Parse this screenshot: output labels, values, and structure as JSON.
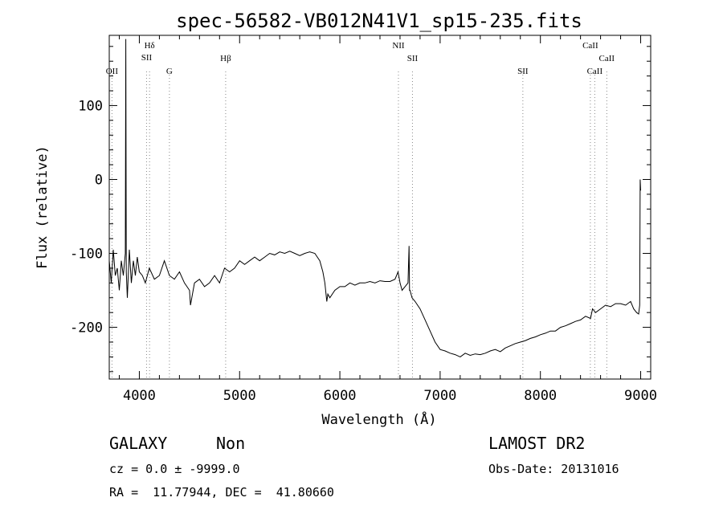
{
  "chart_data": {
    "type": "line",
    "title": "spec-56582-VB012N41V1_sp15-235.fits",
    "xlabel": "Wavelength (Å)",
    "ylabel": "Flux (relative)",
    "xlim": [
      3700,
      9100
    ],
    "ylim": [
      -270,
      195
    ],
    "x_ticks": [
      4000,
      5000,
      6000,
      7000,
      8000,
      9000
    ],
    "y_ticks": [
      -200,
      -100,
      0,
      100
    ],
    "grid": false,
    "series": [
      {
        "x": [
          3700,
          3720,
          3740,
          3760,
          3780,
          3800,
          3820,
          3840,
          3860,
          3865,
          3870,
          3880,
          3900,
          3920,
          3940,
          3960,
          3980,
          4000,
          4030,
          4060,
          4100,
          4150,
          4200,
          4250,
          4300,
          4350,
          4400,
          4450,
          4500,
          4510,
          4550,
          4600,
          4650,
          4700,
          4750,
          4800,
          4850,
          4900,
          4950,
          5000,
          5050,
          5100,
          5150,
          5200,
          5250,
          5300,
          5350,
          5400,
          5450,
          5500,
          5550,
          5600,
          5650,
          5700,
          5750,
          5800,
          5830,
          5850,
          5870,
          5880,
          5900,
          5950,
          6000,
          6050,
          6100,
          6150,
          6200,
          6250,
          6300,
          6350,
          6400,
          6450,
          6500,
          6550,
          6580,
          6600,
          6620,
          6650,
          6680,
          6690,
          6695,
          6700,
          6720,
          6750,
          6800,
          6850,
          6900,
          6950,
          7000,
          7050,
          7100,
          7150,
          7200,
          7250,
          7300,
          7350,
          7400,
          7450,
          7500,
          7550,
          7600,
          7650,
          7700,
          7750,
          7800,
          7850,
          7900,
          7950,
          8000,
          8050,
          8100,
          8150,
          8200,
          8250,
          8300,
          8350,
          8400,
          8450,
          8500,
          8520,
          8550,
          8600,
          8650,
          8700,
          8750,
          8800,
          8850,
          8900,
          8930,
          8960,
          8980,
          8990,
          8995,
          9000
        ],
        "y": [
          -110,
          -140,
          -95,
          -130,
          -120,
          -150,
          -110,
          -130,
          -100,
          190,
          -125,
          -160,
          -95,
          -140,
          -110,
          -130,
          -105,
          -125,
          -130,
          -140,
          -120,
          -135,
          -130,
          -110,
          -130,
          -135,
          -125,
          -140,
          -150,
          -170,
          -140,
          -135,
          -145,
          -140,
          -130,
          -140,
          -120,
          -125,
          -120,
          -110,
          -115,
          -110,
          -105,
          -110,
          -105,
          -100,
          -102,
          -98,
          -100,
          -97,
          -100,
          -103,
          -100,
          -98,
          -100,
          -110,
          -125,
          -140,
          -165,
          -155,
          -160,
          -150,
          -145,
          -145,
          -140,
          -143,
          -140,
          -140,
          -138,
          -140,
          -137,
          -138,
          -138,
          -135,
          -125,
          -140,
          -150,
          -145,
          -140,
          -90,
          -150,
          -150,
          -160,
          -165,
          -175,
          -190,
          -205,
          -220,
          -230,
          -232,
          -235,
          -237,
          -240,
          -235,
          -238,
          -236,
          -237,
          -235,
          -232,
          -230,
          -233,
          -228,
          -225,
          -222,
          -220,
          -218,
          -215,
          -213,
          -210,
          -208,
          -205,
          -205,
          -200,
          -198,
          -195,
          -192,
          -190,
          -185,
          -188,
          -175,
          -180,
          -175,
          -170,
          -172,
          -168,
          -168,
          -170,
          -165,
          -175,
          -180,
          -182,
          -170,
          0,
          -15
        ]
      }
    ],
    "annotations": [
      {
        "label": "OII",
        "x": 3727
      },
      {
        "label": "Hδ",
        "x": 4102
      },
      {
        "label": "SII",
        "x": 4072
      },
      {
        "label": "G",
        "x": 4300
      },
      {
        "label": "Hβ",
        "x": 4861
      },
      {
        "label": "NII",
        "x": 6584
      },
      {
        "label": "SII",
        "x": 6724
      },
      {
        "label": "SII",
        "x": 7825
      },
      {
        "label": "CaII",
        "x": 8498
      },
      {
        "label": "CaII",
        "x": 8542
      },
      {
        "label": "CaII",
        "x": 8662
      }
    ]
  },
  "info": {
    "object_class": "GALAXY",
    "subclass": "Non",
    "survey": "LAMOST DR2",
    "cz_line": "cz = 0.0 ± -9999.0",
    "obs_date_line": "Obs-Date: 20131016",
    "radec_line": "RA =  11.77944, DEC =  41.80660"
  }
}
